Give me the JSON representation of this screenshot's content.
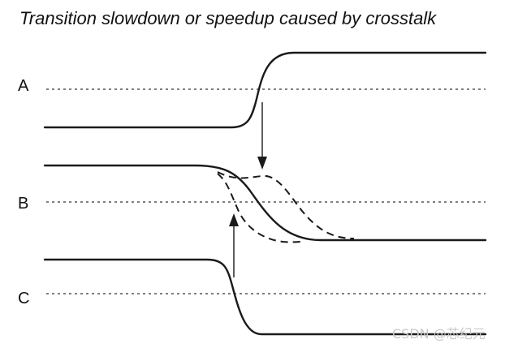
{
  "title": "Transition slowdown or speedup caused by crosstalk",
  "signals": [
    {
      "id": "A",
      "label": "A"
    },
    {
      "id": "B",
      "label": "B"
    },
    {
      "id": "C",
      "label": "C"
    }
  ],
  "watermark": "CSDN @芯纪元",
  "colors": {
    "line": "#1a1a1a",
    "reference": "#555555",
    "watermark": "#c8c8c8"
  }
}
